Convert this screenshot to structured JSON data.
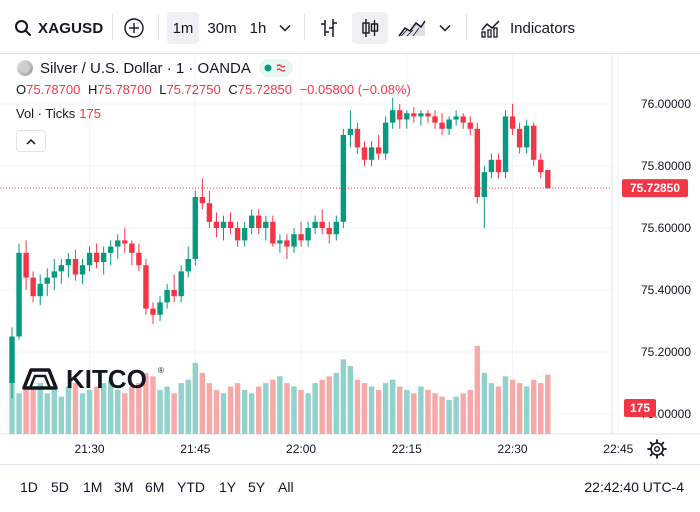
{
  "toolbar": {
    "symbol": "XAGUSD",
    "intervals": [
      "1m",
      "30m",
      "1h"
    ],
    "active_interval": "1m",
    "indicators_label": "Indicators"
  },
  "legend": {
    "title": "Silver / U.S. Dollar · 1 · OANDA",
    "open_label": "O",
    "open": "75.78700",
    "high_label": "H",
    "high": "75.78700",
    "low_label": "L",
    "low": "75.72750",
    "close_label": "C",
    "close": "75.72850",
    "change": "−0.05800 (−0.08%)",
    "vol_label": "Vol · Ticks",
    "vol_value": "175"
  },
  "watermark": {
    "text": "KITCO",
    "mark": "®"
  },
  "price_axis": {
    "ticks": [
      "76.00000",
      "75.80000",
      "75.60000",
      "75.40000",
      "75.20000",
      "75.00000"
    ],
    "last_price": "75.72850",
    "last_volume": "175"
  },
  "time_axis": {
    "ticks": [
      "21:30",
      "21:45",
      "22:00",
      "22:15",
      "22:30",
      "22:45"
    ]
  },
  "bottom_bar": {
    "ranges": [
      "1D",
      "5D",
      "1M",
      "3M",
      "6M",
      "YTD",
      "1Y",
      "5Y",
      "All"
    ],
    "clock": "22:42:40 UTC-4"
  },
  "colors": {
    "up": "#089981",
    "down": "#f23645",
    "up_vol": "#92d2cc",
    "down_vol": "#f7a9a7"
  },
  "chart_data": {
    "type": "candlestick",
    "interval": "1m",
    "price_range": [
      75.0,
      76.0
    ],
    "x_ticks": [
      "21:30",
      "21:45",
      "22:00",
      "22:15",
      "22:30",
      "22:45"
    ],
    "candles": [
      [
        75.1,
        75.28,
        75.05,
        75.25
      ],
      [
        75.25,
        75.55,
        75.24,
        75.52
      ],
      [
        75.52,
        75.56,
        75.4,
        75.44
      ],
      [
        75.44,
        75.46,
        75.36,
        75.38
      ],
      [
        75.38,
        75.45,
        75.35,
        75.42
      ],
      [
        75.42,
        75.47,
        75.38,
        75.44
      ],
      [
        75.44,
        75.5,
        75.4,
        75.46
      ],
      [
        75.46,
        75.5,
        75.42,
        75.48
      ],
      [
        75.48,
        75.52,
        75.44,
        75.5
      ],
      [
        75.5,
        75.53,
        75.43,
        75.45
      ],
      [
        75.45,
        75.5,
        75.42,
        75.48
      ],
      [
        75.48,
        75.54,
        75.46,
        75.52
      ],
      [
        75.52,
        75.55,
        75.47,
        75.49
      ],
      [
        75.49,
        75.54,
        75.45,
        75.52
      ],
      [
        75.52,
        75.56,
        75.48,
        75.54
      ],
      [
        75.54,
        75.58,
        75.5,
        75.56
      ],
      [
        75.56,
        75.6,
        75.52,
        75.55
      ],
      [
        75.55,
        75.56,
        75.48,
        75.52
      ],
      [
        75.52,
        75.55,
        75.46,
        75.48
      ],
      [
        75.48,
        75.5,
        75.32,
        75.34
      ],
      [
        75.34,
        75.36,
        75.29,
        75.32
      ],
      [
        75.32,
        75.38,
        75.3,
        75.36
      ],
      [
        75.36,
        75.42,
        75.34,
        75.4
      ],
      [
        75.4,
        75.45,
        75.36,
        75.38
      ],
      [
        75.38,
        75.48,
        75.36,
        75.46
      ],
      [
        75.46,
        75.54,
        75.44,
        75.5
      ],
      [
        75.5,
        75.72,
        75.48,
        75.7
      ],
      [
        75.7,
        75.76,
        75.66,
        75.68
      ],
      [
        75.68,
        75.72,
        75.6,
        75.62
      ],
      [
        75.62,
        75.65,
        75.57,
        75.6
      ],
      [
        75.6,
        75.64,
        75.56,
        75.62
      ],
      [
        75.62,
        75.65,
        75.58,
        75.6
      ],
      [
        75.6,
        75.62,
        75.54,
        75.56
      ],
      [
        75.56,
        75.62,
        75.54,
        75.6
      ],
      [
        75.6,
        75.66,
        75.58,
        75.64
      ],
      [
        75.64,
        75.66,
        75.58,
        75.6
      ],
      [
        75.6,
        75.64,
        75.56,
        75.62
      ],
      [
        75.62,
        75.64,
        75.54,
        75.55
      ],
      [
        75.55,
        75.58,
        75.52,
        75.56
      ],
      [
        75.56,
        75.58,
        75.5,
        75.54
      ],
      [
        75.54,
        75.6,
        75.52,
        75.58
      ],
      [
        75.58,
        75.62,
        75.54,
        75.56
      ],
      [
        75.56,
        75.62,
        75.54,
        75.6
      ],
      [
        75.6,
        75.64,
        75.58,
        75.62
      ],
      [
        75.62,
        75.66,
        75.58,
        75.6
      ],
      [
        75.6,
        75.62,
        75.55,
        75.58
      ],
      [
        75.58,
        75.64,
        75.56,
        75.62
      ],
      [
        75.62,
        75.92,
        75.6,
        75.9
      ],
      [
        75.9,
        75.98,
        75.86,
        75.92
      ],
      [
        75.92,
        75.94,
        75.84,
        75.86
      ],
      [
        75.86,
        75.88,
        75.8,
        75.82
      ],
      [
        75.82,
        75.88,
        75.8,
        75.86
      ],
      [
        75.86,
        75.9,
        75.82,
        75.84
      ],
      [
        75.84,
        75.96,
        75.82,
        75.94
      ],
      [
        75.94,
        76.02,
        75.92,
        75.98
      ],
      [
        75.98,
        76.0,
        75.92,
        75.95
      ],
      [
        75.95,
        75.98,
        75.92,
        75.97
      ],
      [
        75.97,
        75.99,
        75.94,
        75.96
      ],
      [
        75.96,
        75.98,
        75.93,
        75.97
      ],
      [
        75.97,
        75.98,
        75.94,
        75.96
      ],
      [
        75.96,
        75.98,
        75.92,
        75.94
      ],
      [
        75.94,
        75.97,
        75.9,
        75.92
      ],
      [
        75.92,
        75.96,
        75.9,
        75.95
      ],
      [
        75.95,
        75.98,
        75.93,
        75.96
      ],
      [
        75.96,
        75.97,
        75.92,
        75.94
      ],
      [
        75.94,
        75.96,
        75.9,
        75.92
      ],
      [
        75.92,
        75.94,
        75.68,
        75.7
      ],
      [
        75.7,
        75.8,
        75.6,
        75.78
      ],
      [
        75.78,
        75.84,
        75.76,
        75.82
      ],
      [
        75.82,
        75.84,
        75.76,
        75.78
      ],
      [
        75.78,
        75.98,
        75.76,
        75.96
      ],
      [
        75.96,
        76.0,
        75.9,
        75.92
      ],
      [
        75.92,
        75.94,
        75.84,
        75.86
      ],
      [
        75.86,
        75.95,
        75.84,
        75.93
      ],
      [
        75.93,
        75.94,
        75.8,
        75.82
      ],
      [
        75.82,
        75.84,
        75.76,
        75.78
      ],
      [
        75.787,
        75.787,
        75.7275,
        75.7285
      ]
    ],
    "volume_range": [
      0,
      280
    ],
    "volumes": [
      160,
      120,
      130,
      140,
      150,
      120,
      130,
      110,
      140,
      150,
      120,
      130,
      140,
      150,
      160,
      130,
      120,
      140,
      150,
      180,
      170,
      130,
      140,
      120,
      150,
      160,
      210,
      180,
      150,
      130,
      120,
      140,
      150,
      130,
      120,
      140,
      150,
      160,
      170,
      150,
      140,
      130,
      120,
      150,
      160,
      170,
      180,
      220,
      200,
      160,
      150,
      140,
      130,
      150,
      160,
      140,
      130,
      120,
      140,
      130,
      120,
      110,
      100,
      110,
      120,
      130,
      260,
      180,
      150,
      140,
      170,
      160,
      150,
      140,
      160,
      150,
      175
    ]
  }
}
